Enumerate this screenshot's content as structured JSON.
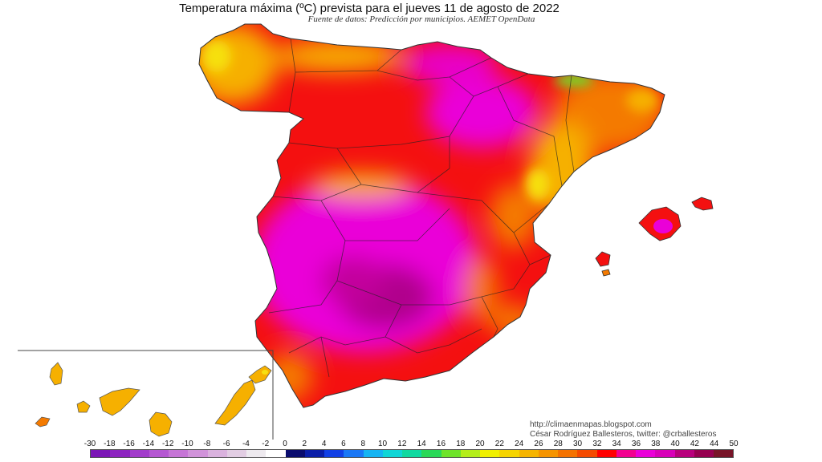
{
  "header": {
    "title": "Temperatura máxima (ºC) prevista para el jueves 11 de agosto de 2022",
    "subtitle": "Fuente de datos: Predicción por municipios. AEMET OpenData"
  },
  "credits": {
    "line1": "http://climaenmapas.blogspot.com",
    "line2": "César Rodríguez Ballesteros, twitter: @crballesteros"
  },
  "legend": {
    "ticks": [
      "-30",
      "-18",
      "-16",
      "-14",
      "-12",
      "-10",
      "-8",
      "-6",
      "-4",
      "-2",
      "0",
      "2",
      "4",
      "6",
      "8",
      "10",
      "12",
      "14",
      "16",
      "18",
      "20",
      "22",
      "24",
      "26",
      "28",
      "30",
      "32",
      "34",
      "36",
      "38",
      "40",
      "42",
      "44",
      "50"
    ],
    "colors": [
      "#7b16b6",
      "#8d24c0",
      "#a23ccb",
      "#b557d2",
      "#c675d6",
      "#d193da",
      "#dab2de",
      "#e2cde3",
      "#eeeaef",
      "#ffffff",
      "#0a0c6e",
      "#0b1ea8",
      "#1240e6",
      "#1a78f6",
      "#16b4f2",
      "#10d6d6",
      "#10d9a0",
      "#2ad858",
      "#6ee32a",
      "#b4ee1a",
      "#f0f000",
      "#f6d400",
      "#f6b400",
      "#f69400",
      "#f47200",
      "#f44a00",
      "#ff0000",
      "#f20090",
      "#ea00d8",
      "#d800b8",
      "#b8007c",
      "#960050",
      "#781428"
    ]
  },
  "map": {
    "regions": [
      "Galicia",
      "Asturias",
      "Cantabria",
      "País Vasco",
      "Navarra",
      "La Rioja",
      "Aragón",
      "Cataluña",
      "Castilla y León",
      "Madrid",
      "Castilla-La Mancha",
      "Extremadura",
      "Andalucía",
      "Murcia",
      "Comunitat Valenciana",
      "Illes Balears",
      "Canarias"
    ],
    "color_scale": {
      "hot_magenta": "#ea00d8",
      "deep_magenta": "#b0008c",
      "red": "#f41010",
      "orange": "#f47a00",
      "yellow_orange": "#f6b000",
      "yellow": "#f6e010",
      "green": "#6ee32a"
    }
  }
}
